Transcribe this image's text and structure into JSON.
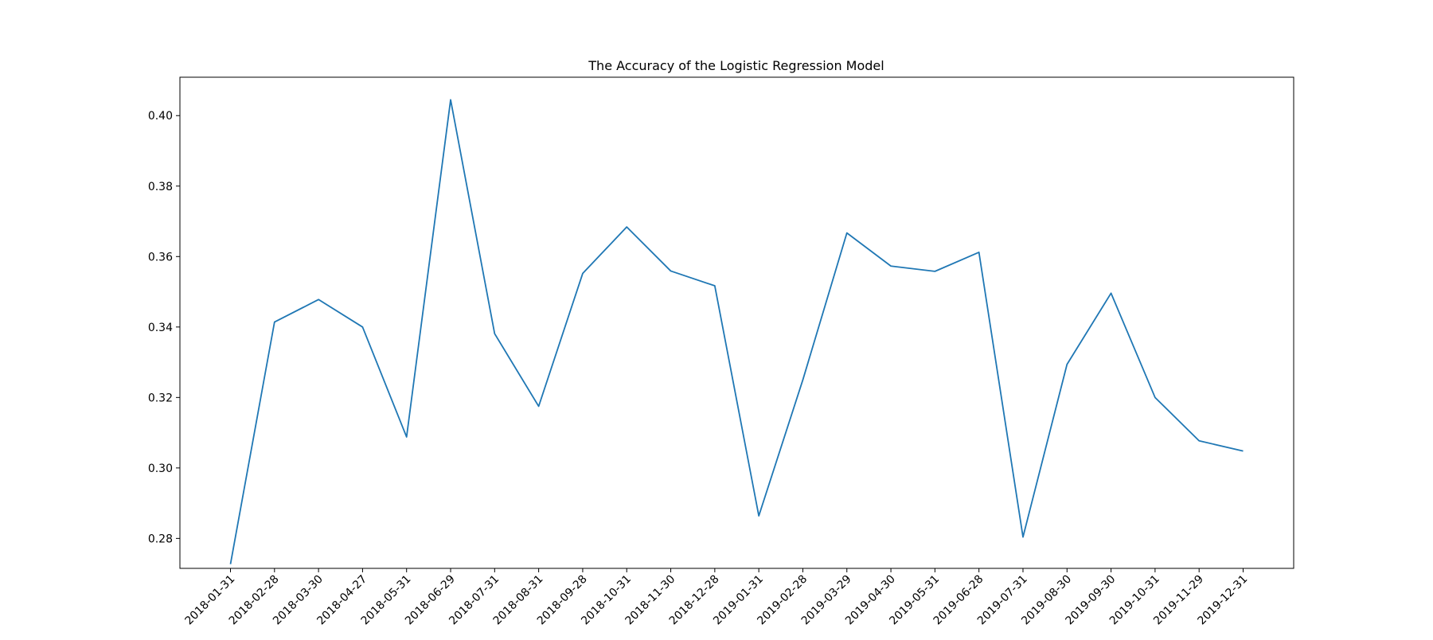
{
  "chart_data": {
    "type": "line",
    "title": "The Accuracy of the Logistic Regression Model",
    "xlabel": "",
    "ylabel": "",
    "x": [
      "2018-01-31",
      "2018-02-28",
      "2018-03-30",
      "2018-04-27",
      "2018-05-31",
      "2018-06-29",
      "2018-07-31",
      "2018-08-31",
      "2018-09-28",
      "2018-10-31",
      "2018-11-30",
      "2018-12-28",
      "2019-01-31",
      "2019-02-28",
      "2019-03-29",
      "2019-04-30",
      "2019-05-31",
      "2019-06-28",
      "2019-07-31",
      "2019-08-30",
      "2019-09-30",
      "2019-10-31",
      "2019-11-29",
      "2019-12-31"
    ],
    "series": [
      {
        "name": "",
        "color": "#1f77b4",
        "values": [
          0.2727,
          0.3414,
          0.3478,
          0.34,
          0.3088,
          0.4045,
          0.3381,
          0.3175,
          0.3552,
          0.3684,
          0.3559,
          0.3517,
          0.2864,
          0.325,
          0.3667,
          0.3573,
          0.3558,
          0.3612,
          0.2804,
          0.3294,
          0.3496,
          0.32,
          0.3077,
          0.3048
        ]
      }
    ],
    "ylim": [
      0.2715,
      0.4109
    ],
    "yticks": [
      0.28,
      0.3,
      0.32,
      0.34,
      0.36,
      0.38,
      0.4
    ],
    "ytick_labels": [
      "0.28",
      "0.30",
      "0.32",
      "0.34",
      "0.36",
      "0.38",
      "0.40"
    ],
    "grid": false,
    "legend": "none"
  }
}
